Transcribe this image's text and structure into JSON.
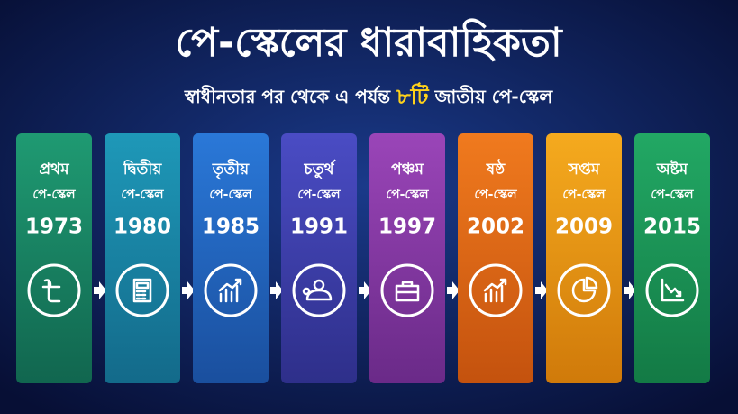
{
  "header": {
    "title": "পে-স্কেলের ধারাবাহিকতা",
    "subtitle": {
      "before": "স্বাধীনতার পর থেকে এ পর্যন্ত",
      "highlight": "৮টি",
      "after": "জাতীয় পে-স্কেল"
    }
  },
  "cards": [
    {
      "ordinal": "প্রথম",
      "label": "পে-স্কেল",
      "year": "1973"
    },
    {
      "ordinal": "দ্বিতীয়",
      "label": "পে-স্কেল",
      "year": "1980"
    },
    {
      "ordinal": "তৃতীয়",
      "label": "পে-স্কেল",
      "year": "1985"
    },
    {
      "ordinal": "চতুর্থ",
      "label": "পে-স্কেল",
      "year": "1991"
    },
    {
      "ordinal": "পঞ্চম",
      "label": "পে-স্কেল",
      "year": "1997"
    },
    {
      "ordinal": "ষষ্ঠ",
      "label": "পে-স্কেল",
      "year": "2002"
    },
    {
      "ordinal": "সপ্তম",
      "label": "পে-স্কেল",
      "year": "2009"
    },
    {
      "ordinal": "অষ্টম",
      "label": "পে-স্কেল",
      "year": "2015"
    }
  ]
}
